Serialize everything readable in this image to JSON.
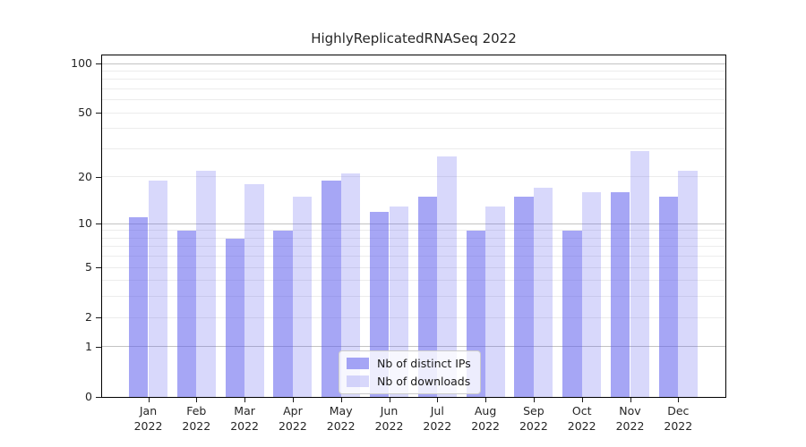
{
  "title": "HighlyReplicatedRNASeq 2022",
  "chart_data": {
    "type": "bar",
    "title": "HighlyReplicatedRNASeq 2022",
    "categories": [
      "Jan 2022",
      "Feb 2022",
      "Mar 2022",
      "Apr 2022",
      "May 2022",
      "Jun 2022",
      "Jul 2022",
      "Aug 2022",
      "Sep 2022",
      "Oct 2022",
      "Nov 2022",
      "Dec 2022"
    ],
    "series": [
      {
        "name": "Nb of distinct IPs",
        "color": "#5c5ced",
        "alpha": 0.55,
        "values": [
          11,
          9,
          8,
          9,
          19,
          12,
          15,
          9,
          15,
          9,
          16,
          15
        ]
      },
      {
        "name": "Nb of downloads",
        "color": "#5c5ced",
        "alpha": 0.24,
        "values": [
          19,
          22,
          18,
          15,
          21,
          13,
          27,
          13,
          17,
          16,
          29,
          22
        ]
      }
    ],
    "xlabel": "",
    "ylabel": "",
    "yscale": "log1p",
    "ylim": [
      0,
      112
    ],
    "yticks": [
      0,
      1,
      2,
      5,
      10,
      20,
      50,
      100
    ],
    "grid_major": [
      1,
      10,
      100
    ],
    "grid_minor": [
      2,
      3,
      4,
      5,
      6,
      7,
      8,
      9,
      20,
      30,
      40,
      50,
      60,
      70,
      80,
      90
    ],
    "grid": true,
    "legend_position": "lower center",
    "spine_color": "#000000",
    "grid_minor_color": "#ececec",
    "grid_major_color": "#c3c3c3"
  }
}
